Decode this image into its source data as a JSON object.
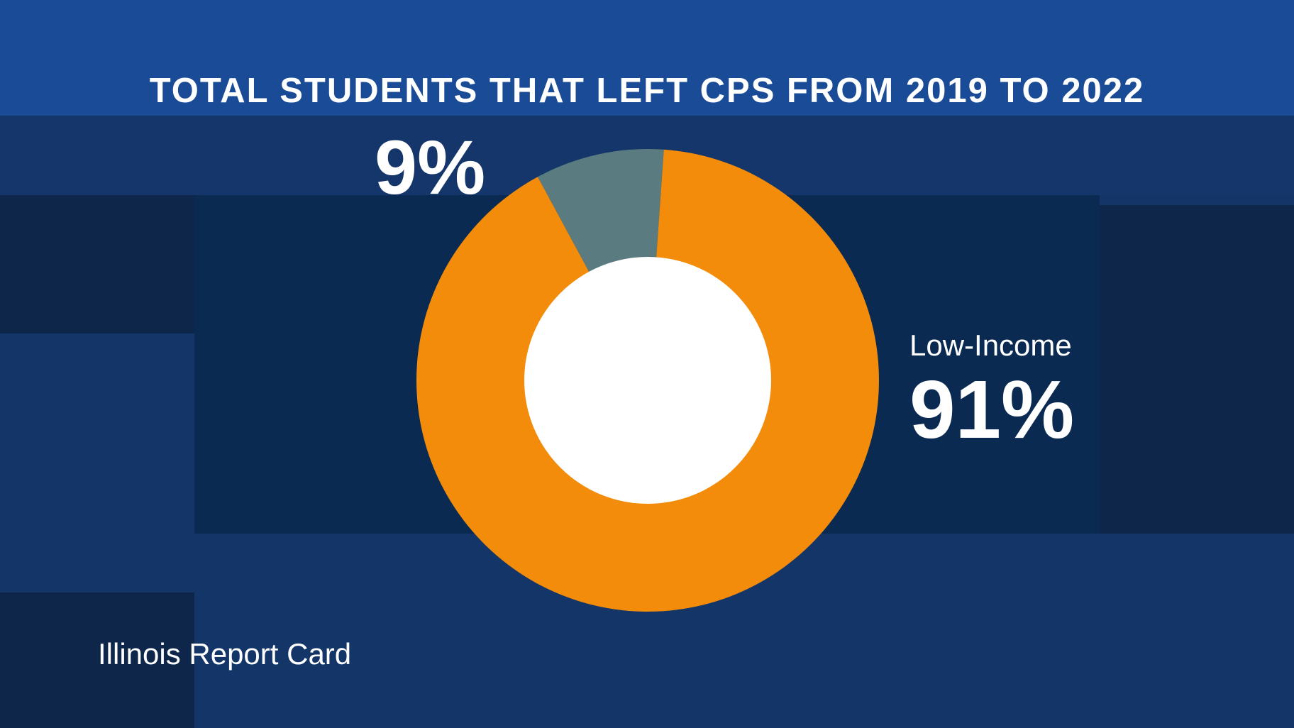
{
  "title": "TOTAL STUDENTS THAT LEFT CPS FROM 2019 TO 2022",
  "source": "Illinois Report Card",
  "colors": {
    "background": "#143568",
    "title_band": "#1a4b96",
    "dark_panel": "#0b2a52",
    "slice_low_income": "#f28c0a",
    "slice_other": "#5a7c80",
    "donut_hole": "#ffffff"
  },
  "chart_data": {
    "type": "pie",
    "donut": true,
    "title": "TOTAL STUDENTS THAT LEFT CPS FROM 2019 TO 2022",
    "slices": [
      {
        "name": "Low-Income",
        "value": 91,
        "label": "91%",
        "color": "#f28c0a"
      },
      {
        "name": "",
        "value": 9,
        "label": "9%",
        "color": "#5a7c80"
      }
    ],
    "legend": "none"
  }
}
